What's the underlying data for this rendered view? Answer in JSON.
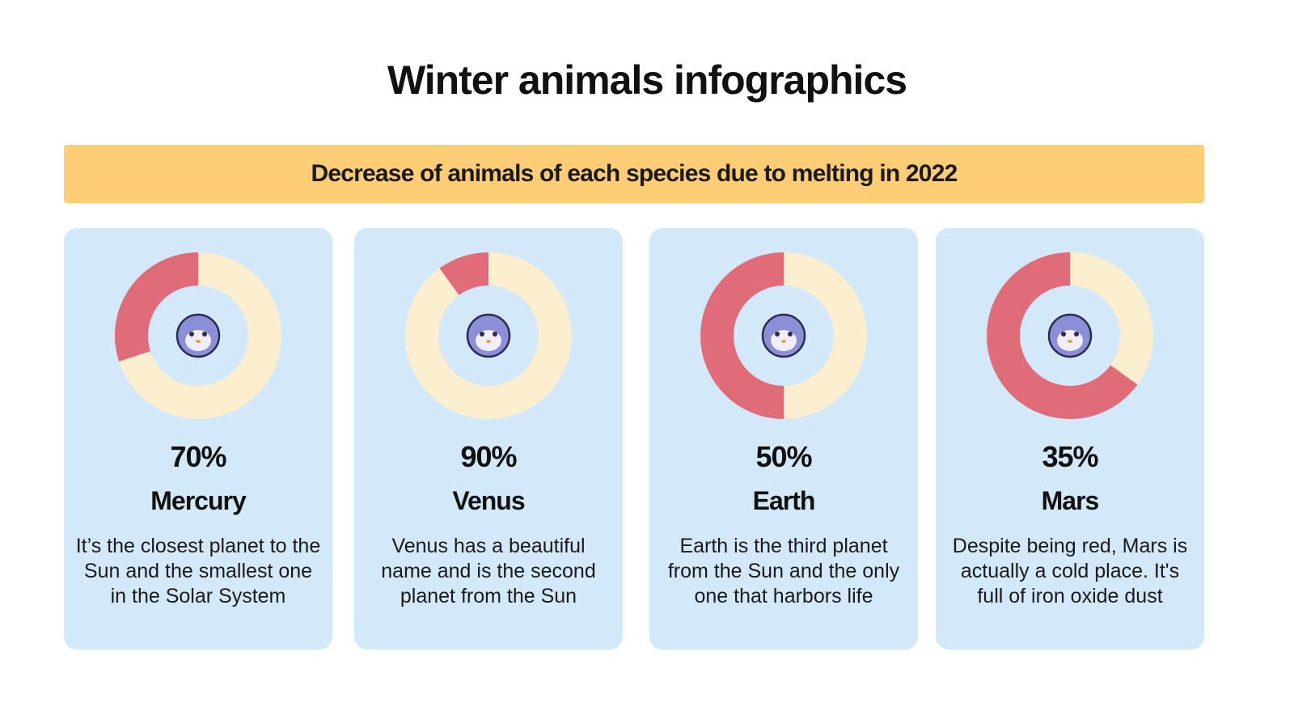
{
  "header": {
    "title": "Winter animals infographics",
    "subtitle": "Decrease of animals of each species due to melting in 2022"
  },
  "chart_data": [
    {
      "type": "donut",
      "title": "Mercury",
      "description": "It’s the closest planet to the Sun and the smallest one in the Solar System",
      "categories": [
        null,
        null
      ],
      "values": [
        70,
        30
      ],
      "value_labels": [
        "70%",
        null
      ],
      "colors": [
        "#fbefcf",
        "#e06c7a"
      ]
    },
    {
      "type": "donut",
      "title": "Venus",
      "description": "Venus has a beautiful name and is the second planet from the Sun",
      "categories": [
        null,
        null
      ],
      "values": [
        90,
        10
      ],
      "value_labels": [
        "90%",
        null
      ],
      "colors": [
        "#fbefcf",
        "#e06c7a"
      ]
    },
    {
      "type": "donut",
      "title": "Earth",
      "description": "Earth is the third planet from the Sun and the only one that harbors life",
      "categories": [
        null,
        null
      ],
      "values": [
        50,
        50
      ],
      "value_labels": [
        "50%",
        null
      ],
      "colors": [
        "#fbefcf",
        "#e06c7a"
      ]
    },
    {
      "type": "donut",
      "title": "Mars",
      "description": "Despite being red, Mars is actually a cold place. It's full of iron oxide dust",
      "categories": [
        null,
        null
      ],
      "values": [
        35,
        65
      ],
      "value_labels": [
        "35%",
        null
      ],
      "colors": [
        "#fbefcf",
        "#e06c7a"
      ]
    }
  ]
}
